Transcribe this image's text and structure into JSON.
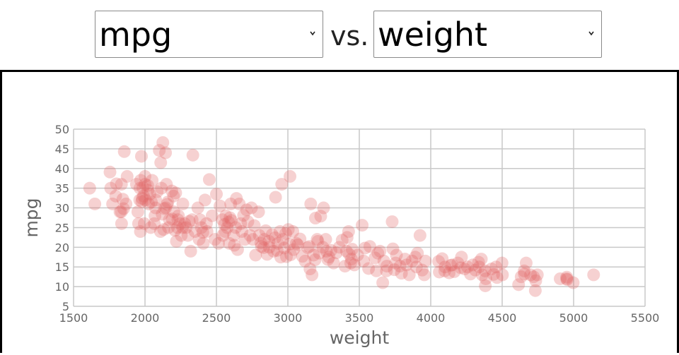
{
  "controls": {
    "y_select": {
      "value": "mpg",
      "icon": "chevron-down-icon"
    },
    "separator": "vs.",
    "x_select": {
      "value": "weight",
      "icon": "chevron-down-icon"
    }
  },
  "chart_data": {
    "type": "scatter",
    "title": "",
    "xlabel": "weight",
    "ylabel": "mpg",
    "xlim": [
      1500,
      5500
    ],
    "ylim": [
      5,
      50
    ],
    "xticks": [
      1500,
      2000,
      2500,
      3000,
      3500,
      4000,
      4500,
      5000,
      5500
    ],
    "yticks": [
      5,
      10,
      15,
      20,
      25,
      30,
      35,
      40,
      45,
      50
    ],
    "grid": true,
    "marker_color": "#e06666",
    "marker_opacity": 0.3,
    "points": [
      [
        1613,
        35
      ],
      [
        1649,
        31
      ],
      [
        1755,
        39.1
      ],
      [
        1760,
        35
      ],
      [
        1773,
        31
      ],
      [
        1795,
        33
      ],
      [
        1800,
        36.1
      ],
      [
        1825,
        29
      ],
      [
        1834,
        29
      ],
      [
        1835,
        36
      ],
      [
        1836,
        26
      ],
      [
        1845,
        32.2
      ],
      [
        1850,
        29.8
      ],
      [
        1855,
        44.3
      ],
      [
        1867,
        31
      ],
      [
        1875,
        38
      ],
      [
        1940,
        36
      ],
      [
        1950,
        29
      ],
      [
        1955,
        26
      ],
      [
        1963,
        32
      ],
      [
        1965,
        35
      ],
      [
        1968,
        24
      ],
      [
        1970,
        37
      ],
      [
        1975,
        43.1
      ],
      [
        1978,
        31.6
      ],
      [
        1980,
        32.4
      ],
      [
        1985,
        35.1
      ],
      [
        1990,
        33
      ],
      [
        1995,
        26
      ],
      [
        2000,
        38
      ],
      [
        2001,
        36
      ],
      [
        2003,
        32
      ],
      [
        2019,
        35.7
      ],
      [
        2020,
        34.5
      ],
      [
        2025,
        31
      ],
      [
        2035,
        33.5
      ],
      [
        2040,
        25
      ],
      [
        2045,
        31.5
      ],
      [
        2050,
        37
      ],
      [
        2065,
        26
      ],
      [
        2070,
        28
      ],
      [
        2074,
        30
      ],
      [
        2075,
        32
      ],
      [
        2085,
        34.1
      ],
      [
        2100,
        44.6
      ],
      [
        2108,
        24
      ],
      [
        2110,
        41.5
      ],
      [
        2115,
        35
      ],
      [
        2120,
        28.4
      ],
      [
        2125,
        46.6
      ],
      [
        2130,
        24.5
      ],
      [
        2135,
        29.8
      ],
      [
        2144,
        44
      ],
      [
        2145,
        30
      ],
      [
        2150,
        36
      ],
      [
        2155,
        30.9
      ],
      [
        2160,
        31.5
      ],
      [
        2164,
        25
      ],
      [
        2171,
        27
      ],
      [
        2188,
        34.3
      ],
      [
        2190,
        27.2
      ],
      [
        2200,
        33
      ],
      [
        2202,
        29
      ],
      [
        2210,
        24.3
      ],
      [
        2215,
        33.8
      ],
      [
        2220,
        21.5
      ],
      [
        2228,
        25
      ],
      [
        2230,
        27
      ],
      [
        2234,
        28
      ],
      [
        2246,
        26
      ],
      [
        2254,
        23
      ],
      [
        2264,
        25
      ],
      [
        2265,
        31
      ],
      [
        2278,
        26
      ],
      [
        2288,
        25
      ],
      [
        2300,
        23
      ],
      [
        2310,
        26.6
      ],
      [
        2320,
        19
      ],
      [
        2330,
        27
      ],
      [
        2335,
        43.4
      ],
      [
        2350,
        24
      ],
      [
        2370,
        30
      ],
      [
        2379,
        22
      ],
      [
        2385,
        27
      ],
      [
        2395,
        25
      ],
      [
        2405,
        23.8
      ],
      [
        2408,
        21
      ],
      [
        2420,
        32
      ],
      [
        2430,
        26
      ],
      [
        2434,
        24
      ],
      [
        2450,
        37.2
      ],
      [
        2470,
        28
      ],
      [
        2490,
        22
      ],
      [
        2500,
        33.5
      ],
      [
        2515,
        21
      ],
      [
        2525,
        30.5
      ],
      [
        2542,
        27
      ],
      [
        2545,
        23
      ],
      [
        2556,
        25.8
      ],
      [
        2560,
        24
      ],
      [
        2565,
        28
      ],
      [
        2575,
        25
      ],
      [
        2585,
        26.4
      ],
      [
        2590,
        21
      ],
      [
        2595,
        27.5
      ],
      [
        2600,
        31
      ],
      [
        2605,
        26.8
      ],
      [
        2620,
        23
      ],
      [
        2625,
        20.5
      ],
      [
        2635,
        25
      ],
      [
        2640,
        32.4
      ],
      [
        2648,
        19.4
      ],
      [
        2660,
        31
      ],
      [
        2670,
        26
      ],
      [
        2678,
        24
      ],
      [
        2690,
        28.1
      ],
      [
        2700,
        22
      ],
      [
        2711,
        29.5
      ],
      [
        2720,
        26.5
      ],
      [
        2735,
        23
      ],
      [
        2745,
        30
      ],
      [
        2755,
        22
      ],
      [
        2765,
        25.5
      ],
      [
        2774,
        18
      ],
      [
        2795,
        29
      ],
      [
        2800,
        23
      ],
      [
        2811,
        21.1
      ],
      [
        2815,
        20.2
      ],
      [
        2830,
        19.9
      ],
      [
        2835,
        22
      ],
      [
        2845,
        24.2
      ],
      [
        2855,
        18.2
      ],
      [
        2868,
        21.5
      ],
      [
        2870,
        20
      ],
      [
        2890,
        23.2
      ],
      [
        2900,
        19
      ],
      [
        2910,
        22.4
      ],
      [
        2914,
        32.7
      ],
      [
        2925,
        19.2
      ],
      [
        2930,
        21
      ],
      [
        2945,
        24
      ],
      [
        2950,
        17.5
      ],
      [
        2957,
        36
      ],
      [
        2965,
        22
      ],
      [
        2975,
        19.8
      ],
      [
        2985,
        23.5
      ],
      [
        2990,
        17.6
      ],
      [
        3003,
        24.5
      ],
      [
        3012,
        20.8
      ],
      [
        3015,
        38
      ],
      [
        3020,
        18.1
      ],
      [
        3035,
        24
      ],
      [
        3040,
        19.4
      ],
      [
        3060,
        21
      ],
      [
        3070,
        20.6
      ],
      [
        3085,
        22.1
      ],
      [
        3102,
        17.7
      ],
      [
        3121,
        16.5
      ],
      [
        3139,
        19.9
      ],
      [
        3150,
        20.2
      ],
      [
        3155,
        14.5
      ],
      [
        3160,
        31
      ],
      [
        3169,
        13
      ],
      [
        3180,
        18
      ],
      [
        3190,
        16.8
      ],
      [
        3193,
        27.4
      ],
      [
        3205,
        22
      ],
      [
        3210,
        21.5
      ],
      [
        3220,
        18.5
      ],
      [
        3230,
        27.9
      ],
      [
        3245,
        20
      ],
      [
        3250,
        30
      ],
      [
        3265,
        22
      ],
      [
        3270,
        19
      ],
      [
        3280,
        16.9
      ],
      [
        3288,
        17.5
      ],
      [
        3302,
        19.2
      ],
      [
        3320,
        16
      ],
      [
        3340,
        18.6
      ],
      [
        3360,
        20
      ],
      [
        3380,
        21.8
      ],
      [
        3400,
        15.2
      ],
      [
        3410,
        19
      ],
      [
        3415,
        22.5
      ],
      [
        3425,
        24
      ],
      [
        3430,
        18.2
      ],
      [
        3440,
        16
      ],
      [
        3445,
        17
      ],
      [
        3450,
        19.5
      ],
      [
        3465,
        15.5
      ],
      [
        3488,
        18
      ],
      [
        3520,
        25.6
      ],
      [
        3530,
        16.5
      ],
      [
        3540,
        19.8
      ],
      [
        3565,
        14.6
      ],
      [
        3574,
        20.2
      ],
      [
        3610,
        17.3
      ],
      [
        3620,
        14
      ],
      [
        3630,
        18.5
      ],
      [
        3645,
        19
      ],
      [
        3664,
        11
      ],
      [
        3672,
        16.5
      ],
      [
        3690,
        14
      ],
      [
        3693,
        15.2
      ],
      [
        3730,
        26.5
      ],
      [
        3735,
        19.6
      ],
      [
        3745,
        14.3
      ],
      [
        3755,
        16
      ],
      [
        3760,
        18
      ],
      [
        3785,
        15.2
      ],
      [
        3795,
        13.4
      ],
      [
        3820,
        17
      ],
      [
        3830,
        15.5
      ],
      [
        3850,
        13
      ],
      [
        3870,
        16.5
      ],
      [
        3892,
        17.5
      ],
      [
        3900,
        15
      ],
      [
        3907,
        18.5
      ],
      [
        3925,
        23
      ],
      [
        3940,
        14.2
      ],
      [
        3955,
        13
      ],
      [
        3962,
        16.5
      ],
      [
        4055,
        16.4
      ],
      [
        4060,
        13.7
      ],
      [
        4080,
        17.1
      ],
      [
        4098,
        14
      ],
      [
        4100,
        15
      ],
      [
        4129,
        13.5
      ],
      [
        4140,
        15.4
      ],
      [
        4150,
        15.5
      ],
      [
        4165,
        13.8
      ],
      [
        4190,
        16
      ],
      [
        4209,
        14.8
      ],
      [
        4215,
        17.5
      ],
      [
        4237,
        14.5
      ],
      [
        4257,
        15
      ],
      [
        4278,
        13.2
      ],
      [
        4294,
        15.5
      ],
      [
        4312,
        14.2
      ],
      [
        4335,
        16.2
      ],
      [
        4340,
        15
      ],
      [
        4354,
        17
      ],
      [
        4360,
        13
      ],
      [
        4380,
        14
      ],
      [
        4382,
        10.2
      ],
      [
        4385,
        12
      ],
      [
        4425,
        14.5
      ],
      [
        4440,
        13.1
      ],
      [
        4457,
        15
      ],
      [
        4464,
        12.3
      ],
      [
        4499,
        16
      ],
      [
        4502,
        13
      ],
      [
        4615,
        10.5
      ],
      [
        4633,
        12.5
      ],
      [
        4654,
        14
      ],
      [
        4655,
        13.2
      ],
      [
        4668,
        16
      ],
      [
        4699,
        13
      ],
      [
        4720,
        12.5
      ],
      [
        4732,
        9
      ],
      [
        4735,
        11.5
      ],
      [
        4746,
        13
      ],
      [
        4906,
        12
      ],
      [
        4951,
        12
      ],
      [
        4952,
        12.4
      ],
      [
        4955,
        11.8
      ],
      [
        4997,
        11
      ],
      [
        5140,
        13
      ]
    ]
  }
}
